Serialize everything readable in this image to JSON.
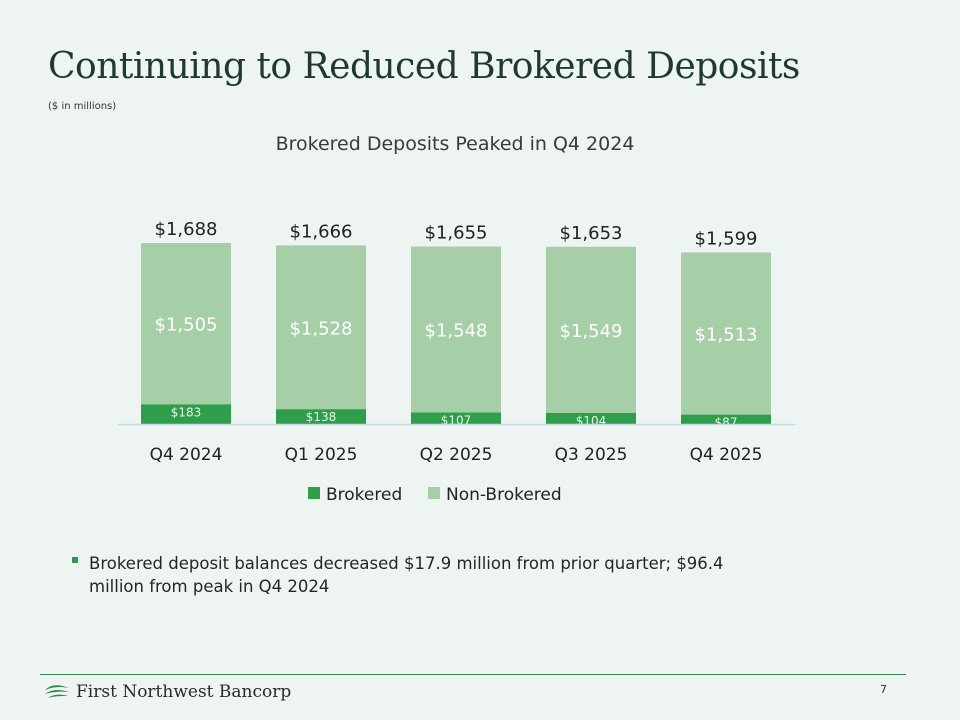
{
  "slide": {
    "title": "Continuing to Reduced Brokered Deposits",
    "units": "($ in millions)"
  },
  "colors": {
    "brokered": "#2e9e4a",
    "non_brokered": "#a6cfa8",
    "axis": "#c4d8e6"
  },
  "chart_data": {
    "type": "bar",
    "stacked": true,
    "title": "Brokered Deposits Peaked in Q4 2024",
    "categories": [
      "Q4 2024",
      "Q1 2025",
      "Q2 2025",
      "Q3 2025",
      "Q4 2025"
    ],
    "series": [
      {
        "name": "Brokered",
        "values": [
          183,
          138,
          107,
          104,
          87
        ],
        "labels": [
          "$183",
          "$138",
          "$107",
          "$104",
          "$87"
        ]
      },
      {
        "name": "Non-Brokered",
        "values": [
          1505,
          1528,
          1548,
          1549,
          1513
        ],
        "labels": [
          "$1,505",
          "$1,528",
          "$1,548",
          "$1,549",
          "$1,513"
        ]
      }
    ],
    "totals": [
      1688,
      1666,
      1655,
      1653,
      1599
    ],
    "total_labels": [
      "$1,688",
      "$1,666",
      "$1,655",
      "$1,653",
      "$1,599"
    ],
    "ylim": [
      0,
      1700
    ],
    "xlabel": "",
    "ylabel": "",
    "legend": "bottom"
  },
  "bullets": [
    "Brokered deposit balances decreased $17.9 million from prior quarter; $96.4 million from peak in Q4 2024"
  ],
  "footer": {
    "logo_text": "First Northwest Bancorp",
    "logo_icon": "leaf-wave-icon",
    "page_number": "7"
  }
}
